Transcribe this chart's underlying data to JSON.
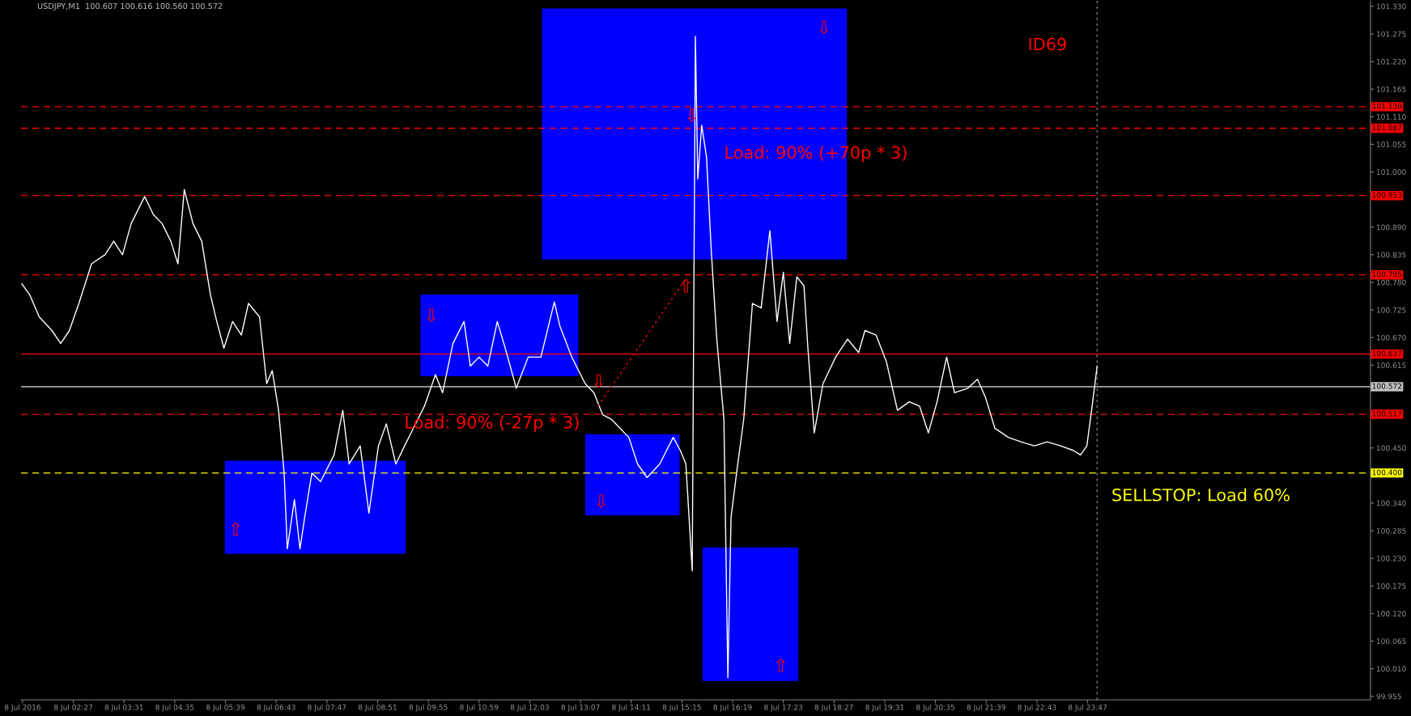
{
  "chart_data": {
    "type": "line",
    "title": "USDJPY,M1  100.607 100.616 100.560 100.572",
    "xlim": [
      "2016-07-08T01:21",
      "2016-07-09T05:44"
    ],
    "ylim": [
      99.948,
      101.341
    ],
    "xticks": [
      {
        "value": "2016-07-08T01:23",
        "label": "8 Jul 2016"
      },
      {
        "value": "2016-07-08T02:27",
        "label": "8 Jul 02:27"
      },
      {
        "value": "2016-07-08T03:31",
        "label": "8 Jul 03:31"
      },
      {
        "value": "2016-07-08T04:35",
        "label": "8 Jul 04:35"
      },
      {
        "value": "2016-07-08T05:39",
        "label": "8 Jul 05:39"
      },
      {
        "value": "2016-07-08T06:43",
        "label": "8 Jul 06:43"
      },
      {
        "value": "2016-07-08T07:47",
        "label": "8 Jul 07:47"
      },
      {
        "value": "2016-07-08T08:51",
        "label": "8 Jul 08:51"
      },
      {
        "value": "2016-07-08T09:55",
        "label": "8 Jul 09:55"
      },
      {
        "value": "2016-07-08T10:59",
        "label": "8 Jul 10:59"
      },
      {
        "value": "2016-07-08T12:03",
        "label": "8 Jul 12:03"
      },
      {
        "value": "2016-07-08T13:07",
        "label": "8 Jul 13:07"
      },
      {
        "value": "2016-07-08T14:11",
        "label": "8 Jul 14:11"
      },
      {
        "value": "2016-07-08T15:15",
        "label": "8 Jul 15:15"
      },
      {
        "value": "2016-07-08T16:19",
        "label": "8 Jul 16:19"
      },
      {
        "value": "2016-07-08T17:23",
        "label": "8 Jul 17:23"
      },
      {
        "value": "2016-07-08T18:27",
        "label": "8 Jul 18:27"
      },
      {
        "value": "2016-07-08T19:31",
        "label": "8 Jul 19:31"
      },
      {
        "value": "2016-07-08T20:35",
        "label": "8 Jul 20:35"
      },
      {
        "value": "2016-07-08T21:39",
        "label": "8 Jul 21:39"
      },
      {
        "value": "2016-07-08T22:43",
        "label": "8 Jul 22:43"
      },
      {
        "value": "2016-07-08T23:47",
        "label": "8 Jul 23:47"
      }
    ],
    "yticks": [
      {
        "value": 101.33,
        "label": "101.330"
      },
      101.275,
      {
        "value": 101.22,
        "label": "101.220"
      },
      101.165,
      {
        "value": 101.11,
        "label": "101.110"
      },
      101.055,
      {
        "value": 101.0,
        "label": "101.000"
      },
      {
        "value": 100.89,
        "label": "100.890"
      },
      100.835,
      {
        "value": 100.78,
        "label": "100.780"
      },
      100.725,
      {
        "value": 100.67,
        "label": "100.670"
      },
      100.615,
      {
        "value": 100.45,
        "label": "100.450"
      },
      {
        "value": 100.34,
        "label": "100.340"
      },
      100.285,
      {
        "value": 100.23,
        "label": "100.230"
      },
      100.175,
      {
        "value": 100.12,
        "label": "100.120"
      },
      100.065,
      {
        "value": 100.01,
        "label": "100.010"
      },
      99.955
    ],
    "series": [
      {
        "color": "#ffffff",
        "x": [
          "2016-07-08T01:22",
          "2016-07-08T01:32",
          "2016-07-08T01:44",
          "2016-07-08T02:00",
          "2016-07-08T02:11",
          "2016-07-08T02:22",
          "2016-07-08T02:34",
          "2016-07-08T02:50",
          "2016-07-08T03:07",
          "2016-07-08T03:18",
          "2016-07-08T03:29",
          "2016-07-08T03:40",
          "2016-07-08T03:57",
          "2016-07-08T04:08",
          "2016-07-08T04:19",
          "2016-07-08T04:30",
          "2016-07-08T04:39",
          "2016-07-08T04:47",
          "2016-07-08T04:58",
          "2016-07-08T05:09",
          "2016-07-08T05:20",
          "2016-07-08T05:28",
          "2016-07-08T05:37",
          "2016-07-08T05:48",
          "2016-07-08T05:59",
          "2016-07-08T06:08",
          "2016-07-08T06:22",
          "2016-07-08T06:31",
          "2016-07-08T06:38",
          "2016-07-08T06:46",
          "2016-07-08T06:53",
          "2016-07-08T06:57",
          "2016-07-08T07:06",
          "2016-07-08T07:13",
          "2016-07-08T07:19",
          "2016-07-08T07:28",
          "2016-07-08T07:39",
          "2016-07-08T07:56",
          "2016-07-08T08:07",
          "2016-07-08T08:15",
          "2016-07-08T08:29",
          "2016-07-08T08:40",
          "2016-07-08T08:52",
          "2016-07-08T09:02",
          "2016-07-08T09:14",
          "2016-07-08T09:25",
          "2016-07-08T09:36",
          "2016-07-08T09:50",
          "2016-07-08T10:04",
          "2016-07-08T10:13",
          "2016-07-08T10:26",
          "2016-07-08T10:40",
          "2016-07-08T10:48",
          "2016-07-08T10:59",
          "2016-07-08T11:10",
          "2016-07-08T11:22",
          "2016-07-08T11:32",
          "2016-07-08T11:46",
          "2016-07-08T12:01",
          "2016-07-08T12:17",
          "2016-07-08T12:34",
          "2016-07-08T12:41",
          "2016-07-08T12:56",
          "2016-07-08T13:13",
          "2016-07-08T13:24",
          "2016-07-08T13:35",
          "2016-07-08T13:46",
          "2016-07-08T13:57",
          "2016-07-08T14:08",
          "2016-07-08T14:19",
          "2016-07-08T14:31",
          "2016-07-08T14:47",
          "2016-07-08T15:04",
          "2016-07-08T15:13",
          "2016-07-08T15:20",
          "2016-07-08T15:28",
          "2016-07-08T15:32",
          "2016-07-08T15:35",
          "2016-07-08T15:40",
          "2016-07-08T15:46",
          "2016-07-08T15:52",
          "2016-07-08T15:59",
          "2016-07-08T16:08",
          "2016-07-08T16:13",
          "2016-07-08T16:17",
          "2016-07-08T16:24",
          "2016-07-08T16:33",
          "2016-07-08T16:44",
          "2016-07-08T16:55",
          "2016-07-08T17:06",
          "2016-07-08T17:15",
          "2016-07-08T17:23",
          "2016-07-08T17:31",
          "2016-07-08T17:40",
          "2016-07-08T17:49",
          "2016-07-08T17:54",
          "2016-07-08T18:02",
          "2016-07-08T18:13",
          "2016-07-08T18:29",
          "2016-07-08T18:44",
          "2016-07-08T18:58",
          "2016-07-08T19:06",
          "2016-07-08T19:20",
          "2016-07-08T19:33",
          "2016-07-08T19:47",
          "2016-07-08T20:02",
          "2016-07-08T20:15",
          "2016-07-08T20:26",
          "2016-07-08T20:37",
          "2016-07-08T20:49",
          "2016-07-08T20:59",
          "2016-07-08T21:16",
          "2016-07-08T21:28",
          "2016-07-08T21:38",
          "2016-07-08T21:50",
          "2016-07-08T22:07",
          "2016-07-08T22:23",
          "2016-07-08T22:40",
          "2016-07-08T22:56",
          "2016-07-08T23:13",
          "2016-07-08T23:29",
          "2016-07-08T23:38",
          "2016-07-08T23:46",
          "2016-07-08T23:52",
          "2016-07-08T23:59"
        ],
        "values": [
          100.777,
          100.755,
          100.711,
          100.684,
          100.658,
          100.684,
          100.738,
          100.817,
          100.835,
          100.862,
          100.835,
          100.897,
          100.951,
          100.915,
          100.897,
          100.862,
          100.817,
          100.965,
          100.897,
          100.862,
          100.755,
          100.702,
          100.649,
          100.702,
          100.675,
          100.738,
          100.711,
          100.578,
          100.604,
          100.525,
          100.4,
          100.249,
          100.347,
          100.249,
          100.312,
          100.4,
          100.383,
          100.436,
          100.525,
          100.418,
          100.454,
          100.32,
          100.454,
          100.498,
          100.418,
          100.454,
          100.489,
          100.533,
          100.596,
          100.56,
          100.658,
          100.702,
          100.613,
          100.631,
          100.613,
          100.702,
          100.649,
          100.569,
          100.631,
          100.631,
          100.741,
          100.693,
          100.631,
          100.578,
          100.56,
          100.516,
          100.507,
          100.489,
          100.471,
          100.418,
          100.391,
          100.418,
          100.471,
          100.445,
          100.418,
          100.205,
          101.27,
          100.986,
          101.093,
          101.03,
          100.844,
          100.667,
          100.507,
          99.992,
          100.312,
          100.4,
          100.507,
          100.738,
          100.729,
          100.883,
          100.702,
          100.8,
          100.658,
          100.791,
          100.773,
          100.649,
          100.48,
          100.578,
          100.631,
          100.667,
          100.64,
          100.684,
          100.675,
          100.622,
          100.525,
          100.542,
          100.533,
          100.48,
          100.542,
          100.631,
          100.56,
          100.569,
          100.587,
          100.551,
          100.489,
          100.471,
          100.462,
          100.454,
          100.462,
          100.454,
          100.445,
          100.436,
          100.454,
          100.525,
          100.613
        ]
      },
      {
        "type": "line",
        "color": "#ff0000",
        "line_style": "dotted",
        "x": [
          "2016-07-08T13:29",
          "2016-07-08T15:20"
        ],
        "values": [
          100.533,
          100.787
        ]
      }
    ],
    "ref_lines": [
      {
        "axis": "y",
        "value": 101.13,
        "label": "101.130",
        "color": "#ff0000",
        "line_style": "dashed"
      },
      {
        "axis": "y",
        "value": 101.087,
        "label": "101.087",
        "color": "#ff0000",
        "line_style": "dashed"
      },
      {
        "axis": "y",
        "value": 100.953,
        "label": "100.953",
        "color": "#ff0000",
        "line_style": "dashed"
      },
      {
        "axis": "y",
        "value": 100.795,
        "label": "100.795",
        "color": "#ff0000",
        "line_style": "dashed"
      },
      {
        "axis": "y",
        "value": 100.637,
        "label": "100.637",
        "color": "#ff0000",
        "line_style": "solid"
      },
      {
        "axis": "y",
        "value": 100.572,
        "label": "100.572",
        "color": "#c0c0c0",
        "line_style": "solid"
      },
      {
        "axis": "y",
        "value": 100.517,
        "label": "100.517",
        "color": "#ff0000",
        "line_style": "dashed"
      },
      {
        "axis": "y",
        "value": 100.4,
        "label": "100.400",
        "color": "#ffff00",
        "line_style": "dashed"
      },
      {
        "axis": "x",
        "value": "2016-07-08T23:59",
        "color": "#808080",
        "line_style": "dotted"
      }
    ],
    "annotations": [
      "ID69",
      "Load: 90% (+70p * 3)",
      "Load: 90% (-27p * 3)",
      "SELLSTOP: Load 60%",
      "⇧",
      "⇩",
      "⇩",
      "⇩",
      {
        "text": "⇧",
        "x": "2016-07-08T15:20",
        "y": 100.787
      },
      "⇩",
      "⇩",
      "⇧"
    ]
  }
}
